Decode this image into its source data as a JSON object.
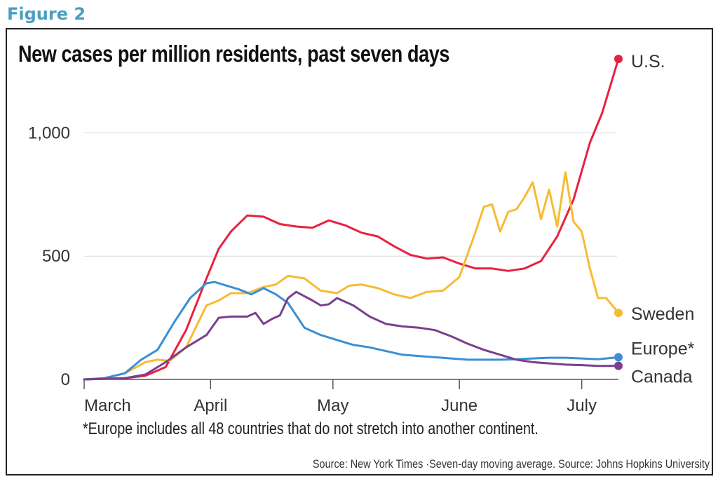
{
  "figure_label": "Figure 2",
  "footnote": "*Europe includes all 48 countries that do not stretch into another continent.",
  "source": "Source: New York Times ·Seven-day moving average. Source: Johns Hopkins University",
  "chart_data": {
    "type": "line",
    "title": "New cases per million residents, past seven days",
    "xlabel": "",
    "ylabel": "",
    "x_ticks": [
      "March",
      "April",
      "May",
      "June",
      "July"
    ],
    "y_ticks": [
      {
        "value": 0,
        "label": "0"
      },
      {
        "value": 500,
        "label": "500"
      },
      {
        "value": 1000,
        "label": "1,000"
      }
    ],
    "ylim": [
      0,
      1300
    ],
    "xlim": [
      0,
      131
    ],
    "grid": "horizontal",
    "series": [
      {
        "name": "U.S.",
        "color": "#e8213f",
        "x": [
          0,
          10,
          15,
          20,
          25,
          30,
          33,
          36,
          40,
          44,
          48,
          52,
          56,
          60,
          64,
          68,
          72,
          76,
          80,
          84,
          88,
          92,
          96,
          100,
          104,
          108,
          112,
          116,
          120,
          124,
          127,
          131
        ],
        "y": [
          0,
          5,
          15,
          50,
          200,
          410,
          530,
          600,
          665,
          660,
          630,
          620,
          615,
          645,
          625,
          595,
          580,
          540,
          505,
          490,
          495,
          470,
          450,
          450,
          440,
          450,
          480,
          580,
          730,
          960,
          1080,
          1300
        ]
      },
      {
        "name": "Sweden",
        "color": "#f7bb33",
        "x": [
          0,
          5,
          10,
          15,
          18,
          21,
          25,
          30,
          33,
          36,
          40,
          44,
          47,
          50,
          54,
          58,
          62,
          65,
          68,
          72,
          76,
          80,
          84,
          88,
          92,
          96,
          98,
          100,
          102,
          104,
          106,
          108,
          110,
          112,
          114,
          116,
          118,
          120,
          122,
          124,
          126,
          128,
          131
        ],
        "y": [
          0,
          5,
          25,
          70,
          80,
          75,
          130,
          300,
          320,
          350,
          350,
          375,
          385,
          420,
          410,
          360,
          350,
          380,
          385,
          370,
          345,
          330,
          355,
          360,
          415,
          600,
          700,
          710,
          600,
          680,
          690,
          740,
          800,
          650,
          770,
          620,
          840,
          640,
          600,
          450,
          330,
          330,
          270
        ]
      },
      {
        "name": "Europe*",
        "color": "#3b8fd2",
        "x": [
          0,
          5,
          10,
          14,
          18,
          22,
          26,
          30,
          32,
          34,
          38,
          41,
          44,
          47,
          50,
          54,
          58,
          62,
          66,
          70,
          74,
          78,
          82,
          86,
          90,
          94,
          98,
          102,
          106,
          110,
          114,
          118,
          122,
          126,
          131
        ],
        "y": [
          0,
          5,
          25,
          80,
          120,
          230,
          330,
          390,
          395,
          385,
          365,
          345,
          370,
          345,
          310,
          210,
          180,
          160,
          140,
          130,
          115,
          100,
          95,
          90,
          85,
          80,
          80,
          80,
          82,
          85,
          88,
          88,
          85,
          82,
          90
        ]
      },
      {
        "name": "Canada",
        "color": "#7a3f8f",
        "x": [
          0,
          10,
          15,
          20,
          25,
          30,
          33,
          36,
          40,
          42,
          44,
          46,
          48,
          50,
          52,
          56,
          58,
          60,
          62,
          66,
          70,
          74,
          78,
          82,
          86,
          90,
          94,
          98,
          102,
          106,
          110,
          114,
          118,
          122,
          126,
          131
        ],
        "y": [
          0,
          5,
          20,
          70,
          130,
          180,
          250,
          255,
          255,
          270,
          225,
          245,
          260,
          330,
          355,
          320,
          300,
          305,
          330,
          300,
          255,
          225,
          215,
          210,
          200,
          175,
          145,
          120,
          100,
          80,
          70,
          65,
          60,
          58,
          55,
          55
        ]
      }
    ]
  }
}
